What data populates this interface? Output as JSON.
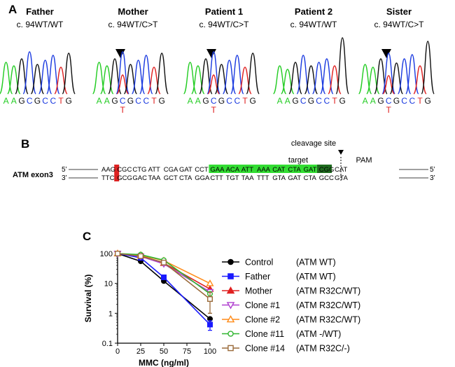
{
  "panels": {
    "a": "A",
    "b": "B",
    "c": "C"
  },
  "colors": {
    "A": "#22cc22",
    "G": "#111111",
    "C": "#1a3ae0",
    "T": "#e02020",
    "target_highlight": "#33dd33",
    "pam_highlight": "#1e6b1e",
    "mutation_highlight": "#dd2222"
  },
  "chromatograms": [
    {
      "name": "Father",
      "genotype": "c. 94WT/WT",
      "bases": [
        "A",
        "A",
        "G",
        "C",
        "G",
        "C",
        "C",
        "T",
        "G"
      ],
      "arrow": false,
      "variant": ""
    },
    {
      "name": "Mother",
      "genotype": "c. 94WT/C>T",
      "bases": [
        "A",
        "A",
        "G",
        "C",
        "G",
        "C",
        "C",
        "T",
        "G"
      ],
      "arrow": true,
      "variant": "T"
    },
    {
      "name": "Patient 1",
      "genotype": "c. 94WT/C>T",
      "bases": [
        "A",
        "A",
        "G",
        "C",
        "G",
        "C",
        "C",
        "T",
        "G"
      ],
      "arrow": true,
      "variant": "T"
    },
    {
      "name": "Patient 2",
      "genotype": "c. 94WT/WT",
      "bases": [
        "A",
        "A",
        "G",
        "C",
        "G",
        "C",
        "C",
        "T",
        "G"
      ],
      "arrow": false,
      "variant": ""
    },
    {
      "name": "Sister",
      "genotype": "c. 94WT/C>T",
      "bases": [
        "A",
        "A",
        "G",
        "C",
        "G",
        "C",
        "C",
        "T",
        "G"
      ],
      "arrow": true,
      "variant": "T"
    }
  ],
  "exon": {
    "label": "ATM exon3",
    "cleavage_site": "cleavage site",
    "target_label": "target",
    "pam_label": "PAM",
    "top_prime_left": "5’",
    "bottom_prime_left": "3’",
    "top_prime_right": "5’",
    "bottom_prime_right": "3’",
    "top_codons": [
      "AAG",
      "CGC",
      "CTG",
      "ATT",
      "CGA",
      "GAT",
      "CCT",
      "GAA",
      "ACA",
      "ATT",
      "AAA",
      "CAT",
      "CTA",
      "GAT",
      "CGG",
      "CAT"
    ],
    "bottom_codons": [
      "TTC",
      "GCG",
      "GAC",
      "TAA",
      "GCT",
      "CTA",
      "GGA",
      "CTT",
      "TGT",
      "TAA",
      "TTT",
      "GTA",
      "GAT",
      "CTA",
      "GCC",
      "GTA"
    ]
  },
  "chart_data": {
    "type": "line",
    "xlabel": "MMC (ng/ml)",
    "ylabel": "Survival (%)",
    "yscale": "log",
    "ylim": [
      0.1,
      100
    ],
    "xlim": [
      0,
      100
    ],
    "xticks": [
      "0",
      "25",
      "50",
      "75",
      "100"
    ],
    "yticks": [
      "0.1",
      "1",
      "10",
      "100"
    ],
    "x": [
      0,
      25,
      50,
      100
    ],
    "series": [
      {
        "name": "Control",
        "genotype": "(ATM WT)",
        "color": "#000000",
        "marker": "circle-filled",
        "values": [
          100,
          55,
          12,
          0.65
        ],
        "error_last": 0
      },
      {
        "name": "Father",
        "genotype": "(ATM WT)",
        "color": "#1a1aff",
        "marker": "square-filled",
        "values": [
          100,
          72,
          16,
          0.42
        ],
        "error_last": 0.15
      },
      {
        "name": "Mother",
        "genotype": "(ATM R32C/WT)",
        "color": "#e02020",
        "marker": "triangle-up-filled",
        "values": [
          100,
          85,
          48,
          6.5
        ],
        "error_last": 0
      },
      {
        "name": "Clone #1",
        "genotype": "(ATM R32C/WT)",
        "color": "#b040d0",
        "marker": "triangle-down-open",
        "values": [
          100,
          80,
          45,
          5.2
        ],
        "error_last": 0
      },
      {
        "name": "Clone #2",
        "genotype": "(ATM R32C/WT)",
        "color": "#ff8c1a",
        "marker": "triangle-up-open",
        "values": [
          100,
          88,
          58,
          10
        ],
        "error_last": 0
      },
      {
        "name": "Clone #11",
        "genotype": "(ATM -/WT)",
        "color": "#2fb52f",
        "marker": "circle-open",
        "values": [
          100,
          92,
          60,
          4.5
        ],
        "error_last": 0
      },
      {
        "name": "Clone #14",
        "genotype": "(ATM R32C/-)",
        "color": "#9a6a3a",
        "marker": "square-open",
        "values": [
          100,
          82,
          50,
          3.0
        ],
        "error_last": 2.0
      }
    ]
  }
}
